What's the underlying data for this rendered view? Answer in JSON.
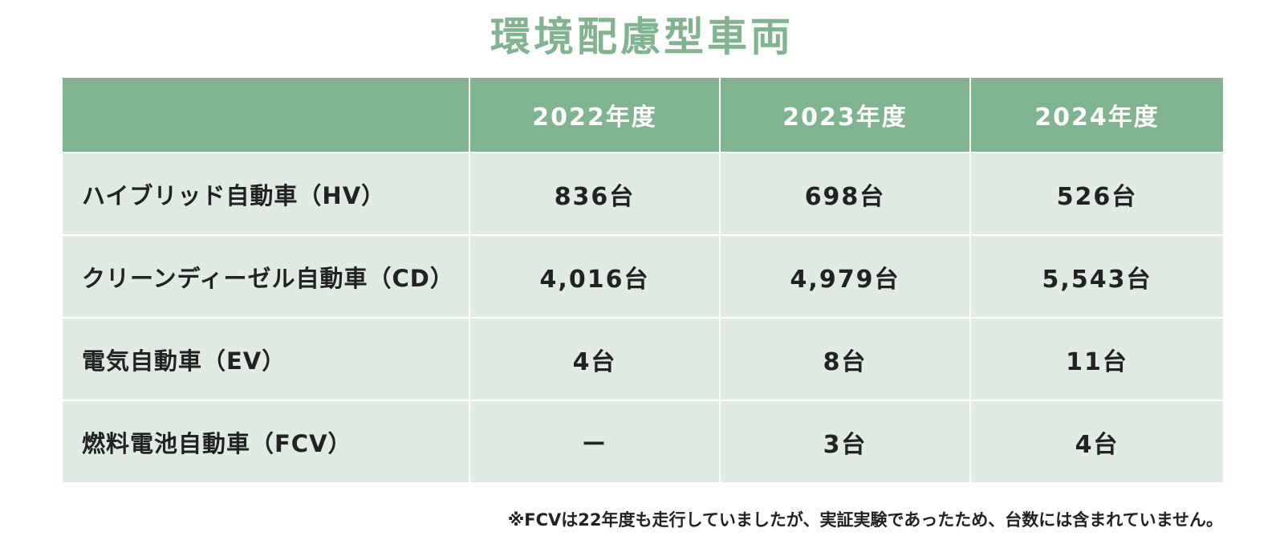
{
  "title": "環境配慮型車両",
  "chart_data": {
    "type": "table",
    "title": "環境配慮型車両",
    "columns": [
      "",
      "2022年度",
      "2023年度",
      "2024年度"
    ],
    "rows": [
      {
        "label": "ハイブリッド自動車（HV）",
        "cells": [
          "836台",
          "698台",
          "526台"
        ]
      },
      {
        "label": "クリーンディーゼル自動車（CD）",
        "cells": [
          "4,016台",
          "4,979台",
          "5,543台"
        ]
      },
      {
        "label": "電気自動車（EV）",
        "cells": [
          "4台",
          "8台",
          "11台"
        ]
      },
      {
        "label": "燃料電池自動車（FCV）",
        "cells": [
          "ー",
          "3台",
          "4台"
        ]
      }
    ]
  },
  "note": "※FCVは22年度も走行していましたが、実証実験であったため、台数には含まれていません。",
  "colors": {
    "accent": "#7fb48f",
    "row_background": "#dfebe3",
    "text": "#222222"
  }
}
